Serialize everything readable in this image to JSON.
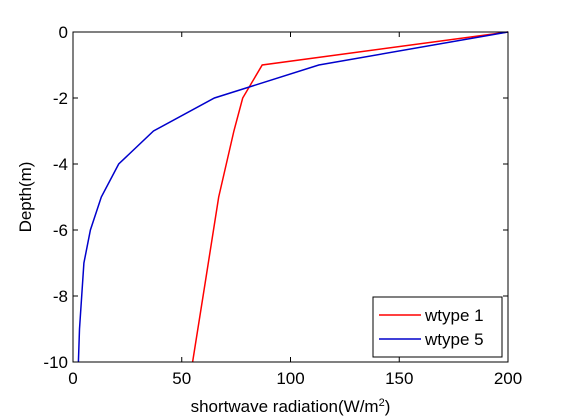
{
  "chart_data": {
    "type": "line",
    "xlabel": "shortwave radiation(W/m",
    "xlabel_sup": "2",
    "xlabel_tail": ")",
    "ylabel": "Depth(m)",
    "xlim": [
      0,
      200
    ],
    "ylim": [
      -10,
      0
    ],
    "xticks": [
      0,
      50,
      100,
      150,
      200
    ],
    "yticks": [
      0,
      -2,
      -4,
      -6,
      -8,
      -10
    ],
    "grid": false,
    "legend_position": "bottom-right",
    "series": [
      {
        "name": "wtype 1",
        "color": "#ff0000",
        "x": [
          200,
          87,
          78,
          74,
          67,
          61,
          55
        ],
        "y": [
          0,
          -1,
          -2,
          -3,
          -5,
          -7.5,
          -10
        ]
      },
      {
        "name": "wtype 5",
        "color": "#0000cc",
        "x": [
          200,
          113,
          65,
          37,
          21,
          13,
          8,
          5,
          4,
          3,
          2.5
        ],
        "y": [
          0,
          -1,
          -2,
          -3,
          -4,
          -5,
          -6,
          -7,
          -8,
          -9,
          -10
        ]
      }
    ]
  }
}
